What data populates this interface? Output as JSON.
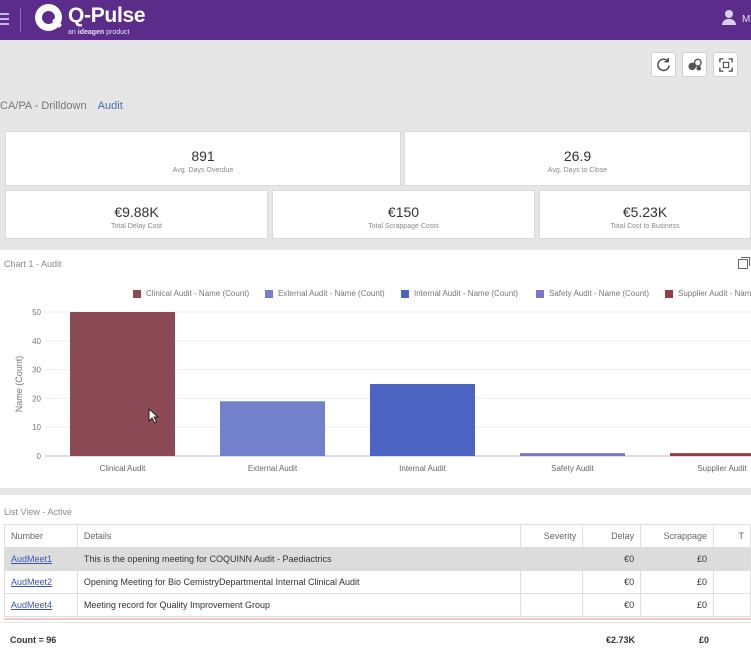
{
  "header": {
    "app_name": "Q-Pulse",
    "sub_prefix": "an",
    "sub_brand": "ideagen",
    "sub_suffix": "product",
    "user_initial": "M"
  },
  "breadcrumb": {
    "items": [
      "CA/PA - Drilldown",
      "Audit"
    ]
  },
  "kpis": {
    "row1": [
      {
        "value": "891",
        "label": "Avg. Days Overdue"
      },
      {
        "value": "26.9",
        "label": "Avg. Days to Close"
      }
    ],
    "row2": [
      {
        "value": "€9.88K",
        "label": "Total Delay Cost"
      },
      {
        "value": "€150",
        "label": "Total Scrappage Costs"
      },
      {
        "value": "€5.23K",
        "label": "Total Cost to Business"
      }
    ]
  },
  "chart_panel": {
    "title": "Chart 1 - Audit"
  },
  "chart_data": {
    "type": "bar",
    "title": "Chart 1 - Audit",
    "ylabel": "Name (Count)",
    "xlabel": "",
    "ylim": [
      0,
      50
    ],
    "yticks": [
      0,
      10,
      20,
      30,
      40,
      50
    ],
    "categories": [
      "Clinical Audit",
      "External Audit",
      "Internal Audit",
      "Safety Audit",
      "Supplier Audit"
    ],
    "series": [
      {
        "name": "Clinical Audit - Name (Count)",
        "category": "Clinical Audit",
        "value": 50,
        "color": "#8b4a55"
      },
      {
        "name": "External Audit - Name (Count)",
        "category": "External Audit",
        "value": 19,
        "color": "#7380cc"
      },
      {
        "name": "Internal Audit - Name (Count)",
        "category": "Internal Audit",
        "value": 25,
        "color": "#4d63c2"
      },
      {
        "name": "Safety Audit - Name (Count)",
        "category": "Safety Audit",
        "value": 1,
        "color": "#7a78c4"
      },
      {
        "name": "Supplier Audit - Name (Count)",
        "category": "Supplier Audit",
        "value": 1,
        "color": "#953d46"
      }
    ],
    "legend_position": "top"
  },
  "list_view": {
    "title": "List View - Active",
    "columns": [
      "Number",
      "Details",
      "Severity",
      "Delay",
      "Scrappage",
      "T"
    ],
    "rows": [
      {
        "number": "AudMeet1",
        "details": "This is the opening meeting for COQUINN Audit - Paediactrics",
        "severity": "",
        "delay": "€0",
        "scrappage": "£0"
      },
      {
        "number": "AudMeet2",
        "details": "Opening Meeting for Bio CemistryDepartmental Internal Clinical Audit",
        "severity": "",
        "delay": "€0",
        "scrappage": "£0"
      },
      {
        "number": "AudMeet4",
        "details": "Meeting record for Quality Improvement Group",
        "severity": "",
        "delay": "€0",
        "scrappage": "£0"
      }
    ],
    "footer": {
      "count": "Count = 96",
      "delay_total": "€2.73K",
      "scrappage_total": "£0"
    }
  },
  "icons": {
    "refresh": "refresh-icon",
    "filter": "filter-icon",
    "fullscreen": "fullscreen-icon"
  }
}
